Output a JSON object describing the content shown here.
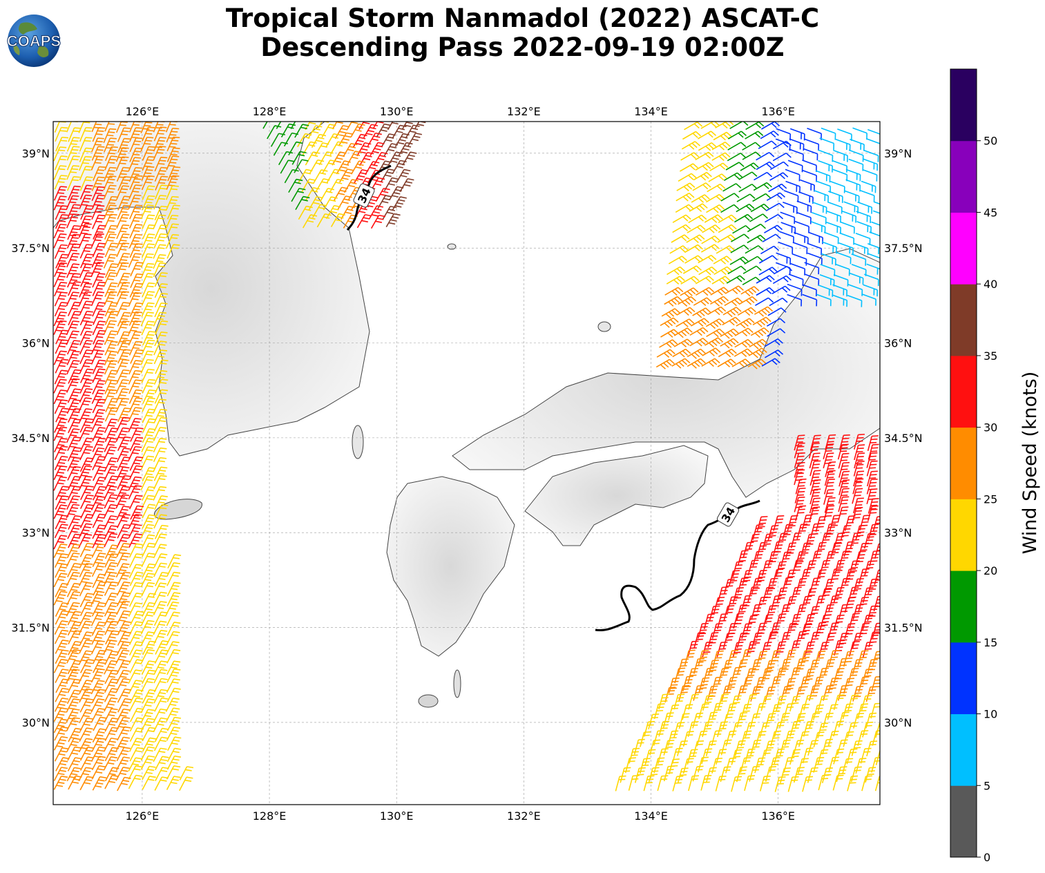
{
  "title": {
    "line1": "Tropical Storm Nanmadol (2022) ASCAT-C",
    "line2": "Descending Pass 2022-09-19 02:00Z"
  },
  "logo": {
    "text": "COAPS"
  },
  "map": {
    "lon_range": [
      124.6,
      137.6
    ],
    "lat_range": [
      28.7,
      39.5
    ],
    "lon_ticks": [
      126,
      128,
      130,
      132,
      134,
      136
    ],
    "lat_ticks": [
      39,
      37.5,
      36,
      34.5,
      33,
      31.5,
      30
    ],
    "lon_tick_labels": [
      "126°E",
      "128°E",
      "130°E",
      "132°E",
      "134°E",
      "136°E"
    ],
    "lat_tick_labels": [
      "39°N",
      "37.5°N",
      "36°N",
      "34.5°N",
      "33°N",
      "31.5°N",
      "30°N"
    ],
    "contour_label": "34",
    "contour_color": "#000000",
    "gridlines": true,
    "land_shading": "grayscale terrain"
  },
  "colorbar": {
    "label": "Wind Speed (knots)",
    "ticks": [
      "0",
      "5",
      "10",
      "15",
      "20",
      "25",
      "30",
      "35",
      "40",
      "45",
      "50"
    ],
    "min": 0,
    "max": 55,
    "colors": [
      "#595959",
      "#00bfff",
      "#0033ff",
      "#009900",
      "#ffd700",
      "#ff8c00",
      "#ff1010",
      "#7f3b28",
      "#ff00ff",
      "#8800bb",
      "#2a0060"
    ]
  }
}
